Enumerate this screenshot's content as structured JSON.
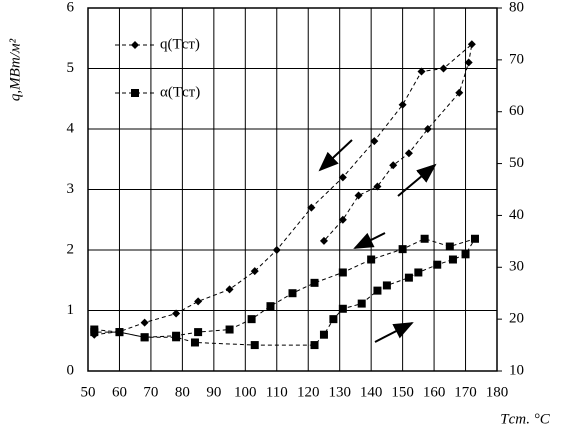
{
  "chart_data": {
    "type": "line",
    "y_label": "q,МВт/м²",
    "x_label": "Tст. °C",
    "xlim": [
      50,
      180
    ],
    "xticks": [
      50,
      60,
      70,
      80,
      90,
      100,
      110,
      120,
      130,
      140,
      150,
      160,
      170,
      180
    ],
    "ylim": [
      0,
      6
    ],
    "yticks": [
      0,
      1,
      2,
      3,
      4,
      5,
      6
    ],
    "y2lim": [
      10,
      80
    ],
    "y2ticks": [
      10,
      20,
      30,
      40,
      50,
      60,
      70,
      80
    ],
    "grid": true,
    "legend": "upper left",
    "series": [
      {
        "name": "q(Tст)",
        "color": "#000",
        "marker": "diamond",
        "axis": "y",
        "x": [
          52,
          60,
          68,
          78,
          85,
          95,
          103,
          110,
          121,
          131,
          141,
          150,
          156,
          163,
          172,
          171,
          168,
          158,
          152,
          147,
          142,
          136,
          131,
          125
        ],
        "values": [
          0.6,
          0.65,
          0.8,
          0.95,
          1.15,
          1.35,
          1.65,
          2.0,
          2.7,
          3.2,
          3.8,
          4.4,
          4.95,
          5.0,
          5.4,
          5.1,
          4.6,
          4.0,
          3.6,
          3.4,
          3.05,
          2.9,
          2.5,
          2.15
        ]
      },
      {
        "name": "α(Tст)",
        "color": "#000",
        "marker": "square",
        "axis": "y2",
        "x": [
          52,
          60,
          68,
          78,
          84,
          103,
          122,
          125,
          128,
          131,
          137,
          142,
          145,
          152,
          155,
          161,
          166,
          170,
          173,
          165,
          157,
          150,
          140,
          131,
          122,
          115,
          108,
          102,
          95,
          85,
          78,
          68,
          60,
          52
        ],
        "values": [
          18,
          17.5,
          16.5,
          16.5,
          15.5,
          15,
          15,
          17,
          20,
          22,
          23,
          25.5,
          26.5,
          28,
          29,
          30.5,
          31.5,
          32.5,
          35.5,
          34,
          35.5,
          33.5,
          31.5,
          29,
          27,
          25,
          22.5,
          20,
          18,
          17.5,
          16.8,
          16.5,
          17.5,
          17.5
        ]
      }
    ]
  }
}
